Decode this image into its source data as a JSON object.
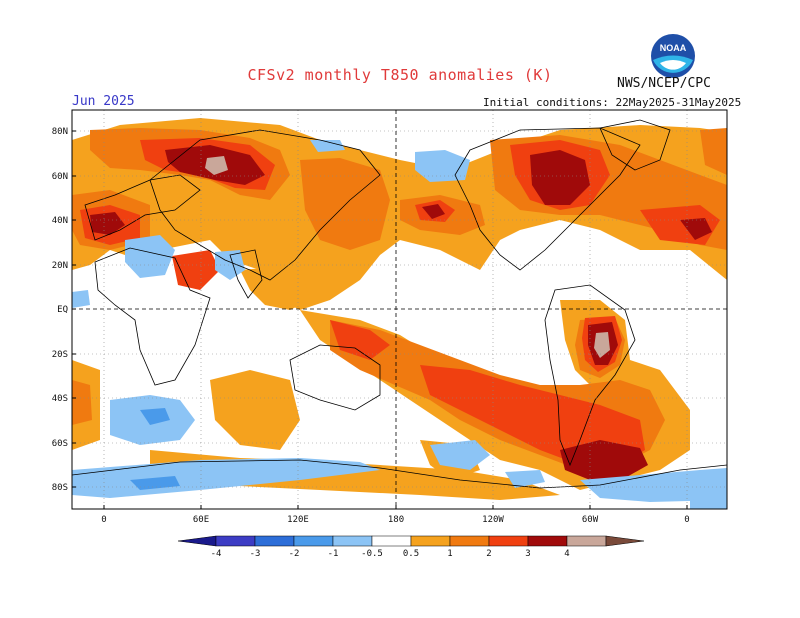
{
  "header": {
    "title": "CFSv2 monthly T850 anomalies (K)",
    "organization": "NWS/NCEP/CPC",
    "logo_text": "NOAA",
    "month": "Jun 2025",
    "initial_conditions": "Initial conditions: 22May2025-31May2025"
  },
  "map": {
    "lat_ticks": [
      "80N",
      "60N",
      "40N",
      "20N",
      "EQ",
      "20S",
      "40S",
      "60S",
      "80S"
    ],
    "lon_ticks": [
      "0",
      "60E",
      "120E",
      "180",
      "120W",
      "60W",
      "0"
    ]
  },
  "colorbar": {
    "labels": [
      "-4",
      "-3",
      "-2",
      "-1",
      "-0.5",
      "0.5",
      "1",
      "2",
      "3",
      "4"
    ],
    "colors": [
      "#1a1a8c",
      "#3c3cc4",
      "#2d6ed8",
      "#4a9aea",
      "#8cc4f5",
      "#ffffff",
      "#f5a21e",
      "#f07a10",
      "#f04010",
      "#a00a0a",
      "#c9a79a",
      "#7a4a3a"
    ]
  },
  "colors": {
    "neg_light": "#8cc4f5",
    "neg_mid": "#4a9aea",
    "pos_light": "#f5a21e",
    "pos_mid": "#f07a10",
    "pos_strong": "#f04010",
    "pos_dark": "#a00a0a",
    "pos_extreme": "#c9a79a"
  }
}
